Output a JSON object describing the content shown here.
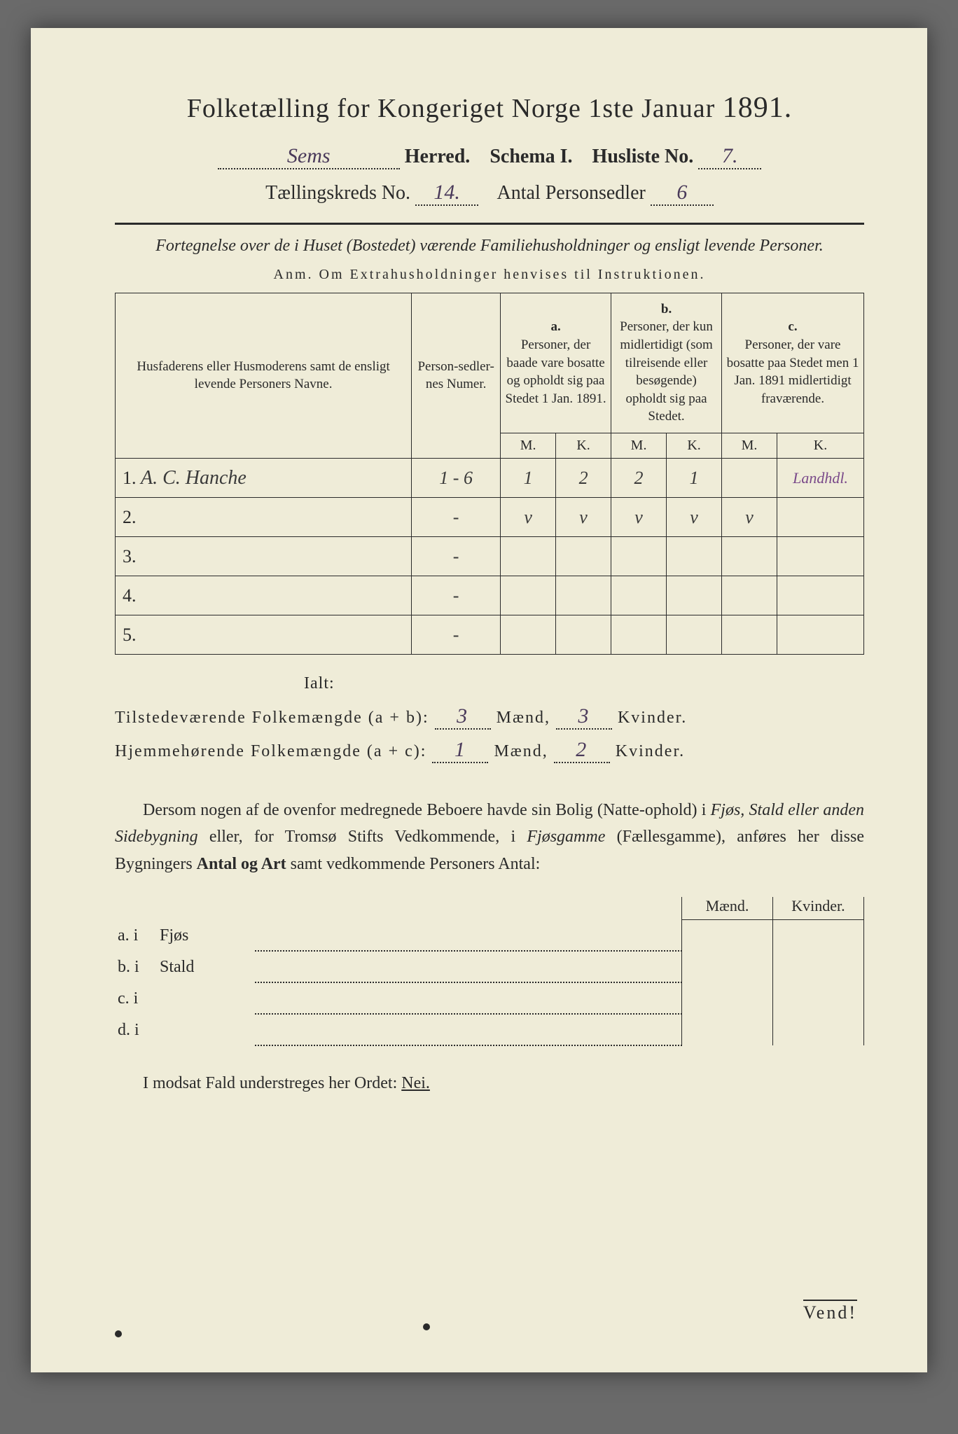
{
  "title": {
    "main": "Folketælling for Kongeriget Norge 1ste Januar",
    "year": "1891."
  },
  "header": {
    "herred_value": "Sems",
    "herred_label": "Herred.",
    "schema_label": "Schema I.",
    "husliste_label": "Husliste No.",
    "husliste_value": "7.",
    "kreds_label": "Tællingskreds No.",
    "kreds_value": "14.",
    "antal_label": "Antal Personsedler",
    "antal_value": "6"
  },
  "subtitle": "Fortegnelse over de i Huset (Bostedet) værende Familiehusholdninger og ensligt levende Personer.",
  "anm": "Anm.  Om Extrahusholdninger henvises til Instruktionen.",
  "columns": {
    "name": "Husfaderens eller Husmoderens samt de ensligt levende Personers Navne.",
    "num": "Person-sedler-nes Numer.",
    "a_label": "a.",
    "a_text": "Personer, der baade vare bosatte og opholdt sig paa Stedet 1 Jan. 1891.",
    "b_label": "b.",
    "b_text": "Personer, der kun midlertidigt (som tilreisende eller besøgende) opholdt sig paa Stedet.",
    "c_label": "c.",
    "c_text": "Personer, der vare bosatte paa Stedet men 1 Jan. 1891 midlertidigt fraværende.",
    "m": "M.",
    "k": "K."
  },
  "rows": [
    {
      "n": "1.",
      "name": "A. C. Hanche",
      "num": "1 - 6",
      "am": "1",
      "ak": "2",
      "bm": "2",
      "bk": "1",
      "cm": "",
      "ck": "Landhdl."
    },
    {
      "n": "2.",
      "name": "",
      "num": "-",
      "am": "v",
      "ak": "v",
      "bm": "v",
      "bk": "v",
      "cm": "v",
      "ck": ""
    },
    {
      "n": "3.",
      "name": "",
      "num": "-",
      "am": "",
      "ak": "",
      "bm": "",
      "bk": "",
      "cm": "",
      "ck": ""
    },
    {
      "n": "4.",
      "name": "",
      "num": "-",
      "am": "",
      "ak": "",
      "bm": "",
      "bk": "",
      "cm": "",
      "ck": ""
    },
    {
      "n": "5.",
      "name": "",
      "num": "-",
      "am": "",
      "ak": "",
      "bm": "",
      "bk": "",
      "cm": "",
      "ck": ""
    }
  ],
  "ialt": "Ialt:",
  "summary": {
    "line1_a": "Tilstedeværende Folkemængde (a + b):",
    "line1_m": "3",
    "line1_k": "3",
    "line2_a": "Hjemmehørende Folkemængde (a + c):",
    "line2_m": "1",
    "line2_k": "2",
    "maend": "Mænd,",
    "kvinder": "Kvinder."
  },
  "para": "Dersom nogen af de ovenfor medregnede Beboere havde sin Bolig (Natte-ophold) i Fjøs, Stald eller anden Sidebygning eller, for Tromsø Stifts Vedkommende, i Fjøsgamme (Fællesgamme), anføres her disse Bygningers Antal og Art samt vedkommende Personers Antal:",
  "bottom": {
    "head_m": "Mænd.",
    "head_k": "Kvinder.",
    "rows": [
      {
        "lbl": "a.  i",
        "typ": "Fjøs"
      },
      {
        "lbl": "b.  i",
        "typ": "Stald"
      },
      {
        "lbl": "c.  i",
        "typ": ""
      },
      {
        "lbl": "d.  i",
        "typ": ""
      }
    ]
  },
  "final": "I modsat Fald understreges her Ordet: Nei.",
  "vend": "Vend!",
  "colors": {
    "paper": "#efecd8",
    "ink": "#2a2a2a",
    "handwriting": "#4a3a5a"
  }
}
